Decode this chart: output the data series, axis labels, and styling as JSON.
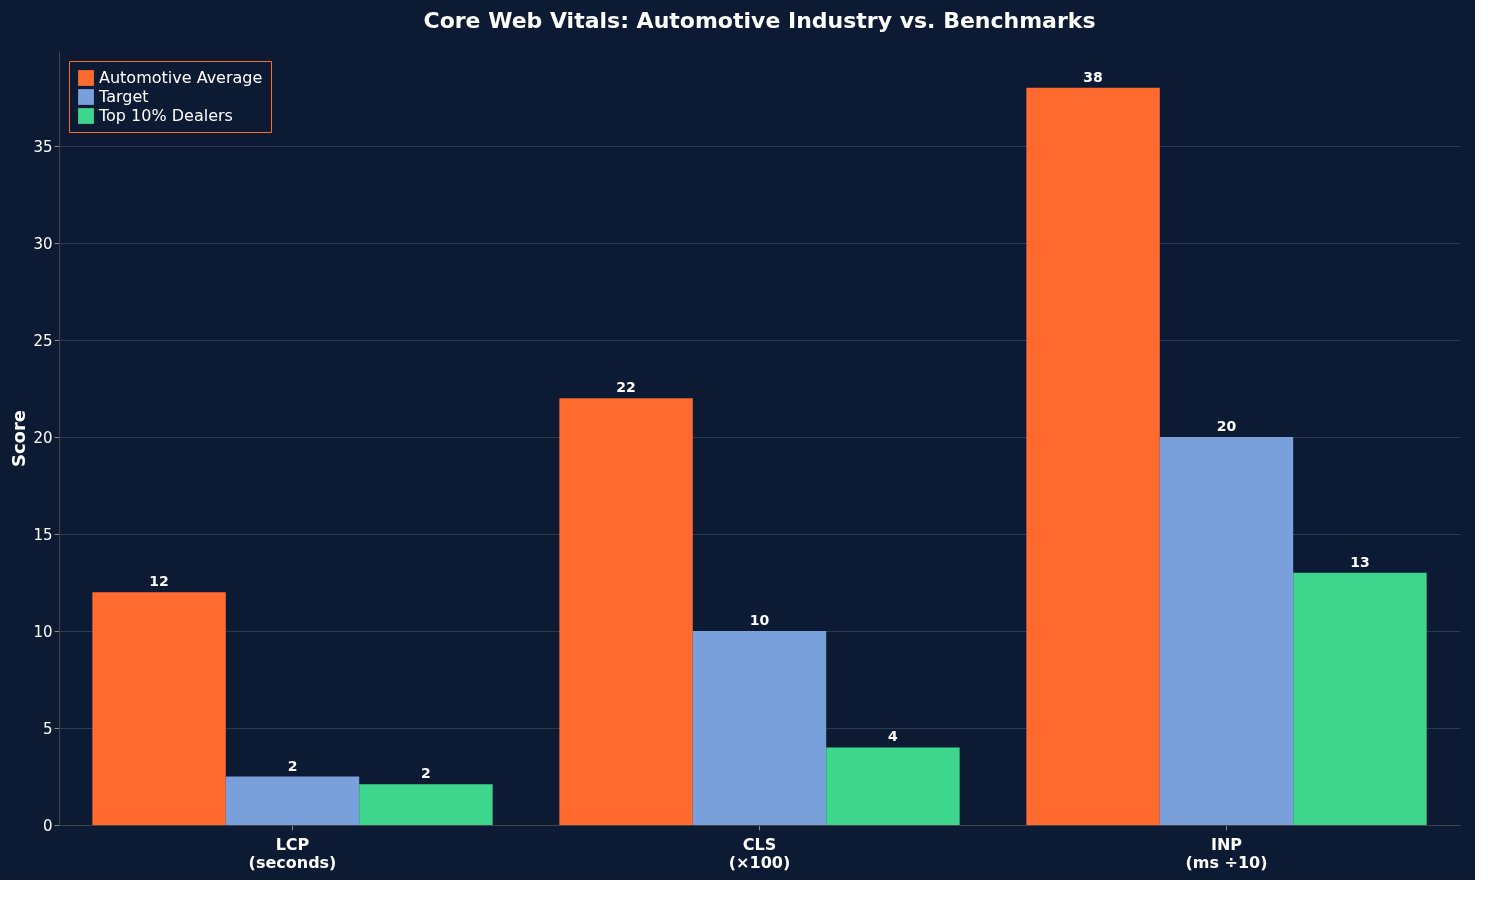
{
  "chart_data": {
    "type": "bar",
    "title": "Core Web Vitals: Automotive Industry vs. Benchmarks",
    "ylabel": "Score",
    "categories": [
      "LCP\n(seconds)",
      "CLS\n(×100)",
      "INP\n(ms ÷10)"
    ],
    "series": [
      {
        "name": "Automotive Average",
        "color": "#ff6b2f",
        "values": [
          12,
          22,
          38
        ],
        "value_labels": [
          "12",
          "22",
          "38"
        ]
      },
      {
        "name": "Target",
        "color": "#7aa0db",
        "values": [
          2.5,
          10,
          20
        ],
        "value_labels": [
          "2",
          "10",
          "20"
        ]
      },
      {
        "name": "Top 10% Dealers",
        "color": "#3dd68c",
        "values": [
          2.1,
          4,
          13
        ],
        "value_labels": [
          "2",
          "4",
          "13"
        ]
      }
    ],
    "ylim": [
      0,
      39.9
    ],
    "yticks": [
      0,
      5,
      10,
      15,
      20,
      25,
      30,
      35
    ],
    "grid": "y",
    "legend": "top left"
  }
}
